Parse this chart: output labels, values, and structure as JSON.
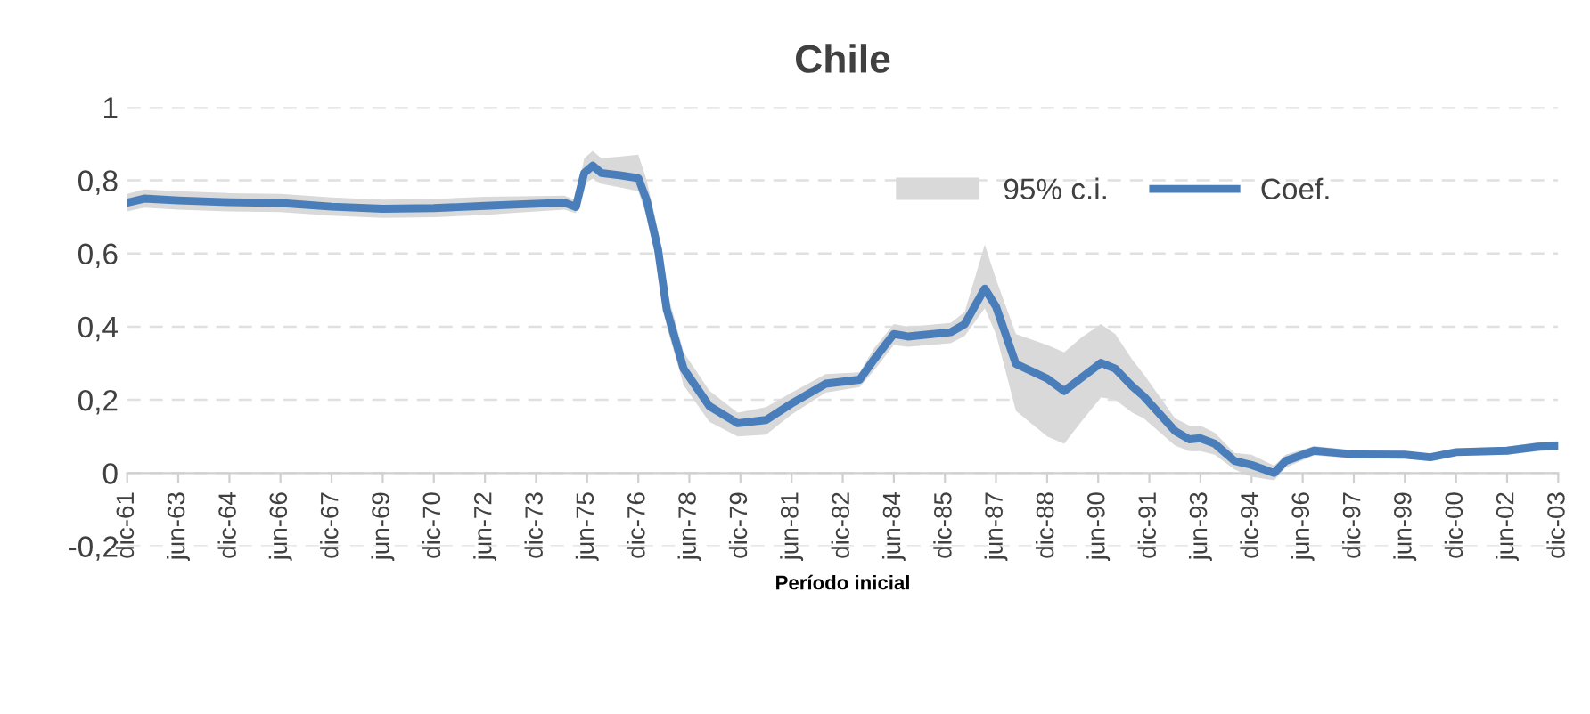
{
  "chart_data": {
    "type": "line",
    "title": "Chile",
    "xlabel": "Período inicial",
    "annotations": [
      "95% c.i."
    ],
    "xlim": [
      "1961-12",
      "2003-12"
    ],
    "ylim": [
      -0.2,
      1
    ],
    "yticks": [
      {
        "value": -0.2,
        "label": "-0,2"
      },
      0,
      {
        "value": 0.2,
        "label": "0,2"
      },
      {
        "value": 0.4,
        "label": "0,4"
      },
      {
        "value": 0.6,
        "label": "0,6"
      },
      {
        "value": 0.8,
        "label": "0,8"
      },
      1
    ],
    "xticks": [
      {
        "value": "1961-12",
        "label": "dic-61"
      },
      {
        "value": "1963-06",
        "label": "jun-63"
      },
      {
        "value": "1964-12",
        "label": "dic-64"
      },
      {
        "value": "1966-06",
        "label": "jun-66"
      },
      {
        "value": "1967-12",
        "label": "dic-67"
      },
      {
        "value": "1969-06",
        "label": "jun-69"
      },
      {
        "value": "1970-12",
        "label": "dic-70"
      },
      {
        "value": "1972-06",
        "label": "jun-72"
      },
      {
        "value": "1973-12",
        "label": "dic-73"
      },
      {
        "value": "1975-06",
        "label": "jun-75"
      },
      {
        "value": "1976-12",
        "label": "dic-76"
      },
      {
        "value": "1978-06",
        "label": "jun-78"
      },
      {
        "value": "1979-12",
        "label": "dic-79"
      },
      {
        "value": "1981-06",
        "label": "jun-81"
      },
      {
        "value": "1982-12",
        "label": "dic-82"
      },
      {
        "value": "1984-06",
        "label": "jun-84"
      },
      {
        "value": "1985-12",
        "label": "dic-85"
      },
      {
        "value": "1987-06",
        "label": "jun-87"
      },
      {
        "value": "1988-12",
        "label": "dic-88"
      },
      {
        "value": "1990-06",
        "label": "jun-90"
      },
      {
        "value": "1991-12",
        "label": "dic-91"
      },
      {
        "value": "1993-06",
        "label": "jun-93"
      },
      {
        "value": "1994-12",
        "label": "dic-94"
      },
      {
        "value": "1996-06",
        "label": "jun-96"
      },
      {
        "value": "1997-12",
        "label": "dic-97"
      },
      {
        "value": "1999-06",
        "label": "jun-99"
      },
      {
        "value": "2000-12",
        "label": "dic-00"
      },
      {
        "value": "2002-06",
        "label": "jun-02"
      },
      {
        "value": "2003-12",
        "label": "dic-03"
      }
    ],
    "grid": "y",
    "legend": "top right",
    "line_style": "solid",
    "marker": "none",
    "series": [
      {
        "name": "Coef.",
        "color": "#4a7ebb",
        "x": [
          "1961-12",
          "1962-06",
          "1963-06",
          "1964-12",
          "1966-06",
          "1967-12",
          "1969-06",
          "1970-12",
          "1972-06",
          "1973-06",
          "1974-10",
          "1975-02",
          "1975-03",
          "1975-05",
          "1975-08",
          "1975-11",
          "1976-06",
          "1976-12",
          "1977-03",
          "1977-07",
          "1977-10",
          "1978-04",
          "1979-01",
          "1979-11",
          "1980-09",
          "1981-06",
          "1982-06",
          "1983-06",
          "1983-11",
          "1984-06",
          "1984-11",
          "1986-02",
          "1986-07",
          "1987-02",
          "1987-06",
          "1988-01",
          "1988-12",
          "1989-06",
          "1989-12",
          "1990-07",
          "1990-12",
          "1991-06",
          "1991-10",
          "1992-09",
          "1993-02",
          "1993-06",
          "1993-11",
          "1994-06",
          "1994-12",
          "1995-08",
          "1995-12",
          "1996-10",
          "1997-12",
          "1999-06",
          "2000-03",
          "2000-12",
          "2002-06",
          "2003-05",
          "2003-12"
        ],
        "values": [
          0.739,
          0.75,
          0.745,
          0.74,
          0.738,
          0.728,
          0.722,
          0.724,
          0.73,
          0.734,
          0.739,
          0.727,
          0.757,
          0.82,
          0.84,
          0.82,
          0.813,
          0.806,
          0.745,
          0.61,
          0.447,
          0.285,
          0.183,
          0.136,
          0.145,
          0.19,
          0.244,
          0.255,
          0.31,
          0.38,
          0.373,
          0.385,
          0.407,
          0.504,
          0.455,
          0.298,
          0.258,
          0.224,
          0.26,
          0.301,
          0.285,
          0.237,
          0.21,
          0.115,
          0.092,
          0.095,
          0.08,
          0.033,
          0.022,
          0.0,
          0.033,
          0.061,
          0.051,
          0.05,
          0.043,
          0.057,
          0.061,
          0.072,
          0.075
        ],
        "lower": [
          0.715,
          0.725,
          0.72,
          0.715,
          0.713,
          0.703,
          0.697,
          0.699,
          0.705,
          0.712,
          0.72,
          0.71,
          0.73,
          0.79,
          0.805,
          0.79,
          0.78,
          0.77,
          0.7,
          0.56,
          0.4,
          0.24,
          0.14,
          0.1,
          0.105,
          0.16,
          0.22,
          0.235,
          0.28,
          0.35,
          0.345,
          0.355,
          0.375,
          0.45,
          0.38,
          0.17,
          0.1,
          0.08,
          0.14,
          0.207,
          0.2,
          0.165,
          0.15,
          0.075,
          0.06,
          0.06,
          0.05,
          0.01,
          -0.01,
          -0.02,
          0.015,
          0.048,
          0.04,
          0.04,
          0.033,
          0.047,
          0.05,
          0.06,
          0.063
        ],
        "upper": [
          0.763,
          0.775,
          0.77,
          0.765,
          0.763,
          0.753,
          0.747,
          0.749,
          0.755,
          0.756,
          0.758,
          0.745,
          0.785,
          0.86,
          0.88,
          0.86,
          0.865,
          0.87,
          0.8,
          0.66,
          0.5,
          0.33,
          0.225,
          0.165,
          0.18,
          0.22,
          0.27,
          0.275,
          0.34,
          0.407,
          0.4,
          0.41,
          0.44,
          0.624,
          0.53,
          0.38,
          0.35,
          0.33,
          0.37,
          0.407,
          0.38,
          0.31,
          0.27,
          0.15,
          0.13,
          0.13,
          0.11,
          0.055,
          0.05,
          0.02,
          0.05,
          0.074,
          0.062,
          0.06,
          0.053,
          0.067,
          0.072,
          0.084,
          0.087
        ]
      }
    ]
  }
}
